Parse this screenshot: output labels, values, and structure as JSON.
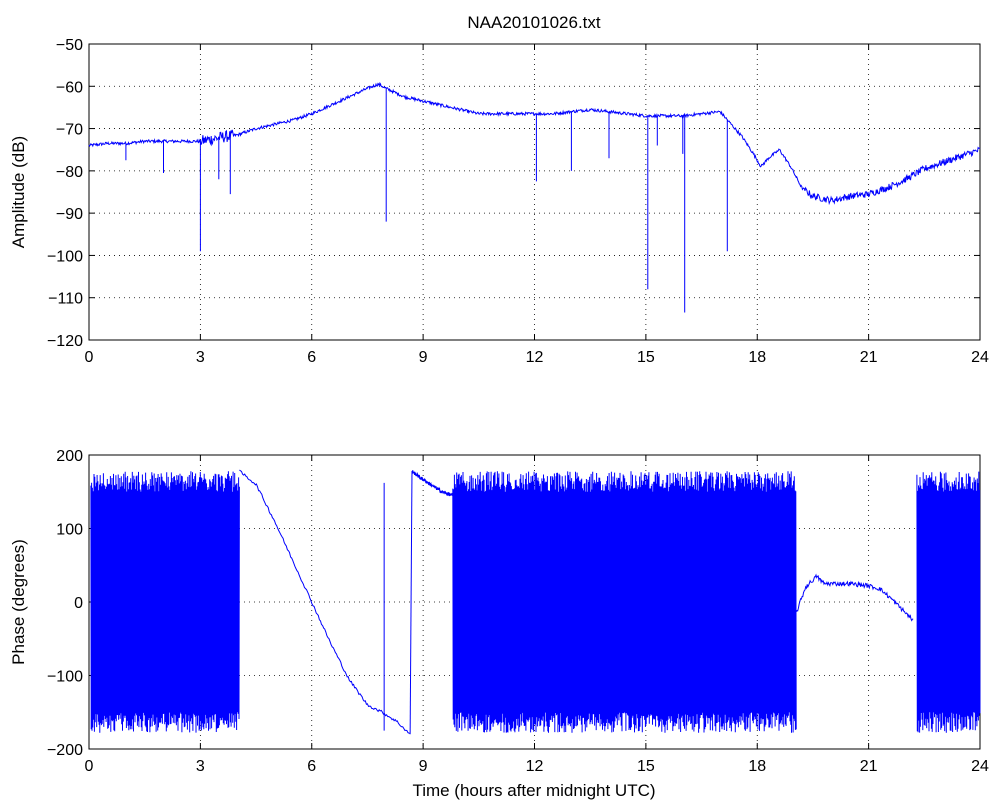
{
  "colors": {
    "series": "#0000ff",
    "axes": "#000000",
    "grid": "#000000",
    "background": "#ffffff"
  },
  "chart_data": [
    {
      "type": "line",
      "title": "NAA20101026.txt",
      "xlabel": "",
      "ylabel": "Amplitude (dB)",
      "xlim": [
        0,
        24
      ],
      "ylim": [
        -120,
        -50
      ],
      "xticks": [
        0,
        3,
        6,
        9,
        12,
        15,
        18,
        21,
        24
      ],
      "yticks": [
        -120,
        -110,
        -100,
        -90,
        -80,
        -70,
        -60,
        -50
      ],
      "grid": true,
      "series": [
        {
          "x": [
            0,
            0.5,
            1.0,
            1.5,
            2.0,
            2.5,
            3.0,
            3.3,
            3.6,
            4.0,
            4.5,
            5.0,
            5.5,
            6.0,
            6.5,
            7.0,
            7.5,
            7.8,
            8.0,
            8.5,
            9.0,
            9.5,
            10.0,
            10.5,
            11.0,
            11.5,
            12.0,
            12.5,
            13.0,
            13.5,
            14.0,
            14.5,
            15.0,
            15.5,
            16.0,
            16.5,
            17.0,
            17.3,
            17.6,
            17.9,
            18.1,
            18.3,
            18.6,
            18.9,
            19.2,
            19.5,
            20.0,
            20.5,
            21.0,
            21.5,
            22.0,
            22.5,
            23.0,
            23.5,
            24.0
          ],
          "y": [
            -74,
            -73.5,
            -73.5,
            -73,
            -73,
            -73,
            -73,
            -72.5,
            -72,
            -71.5,
            -70,
            -69,
            -68,
            -66.5,
            -64.5,
            -62.5,
            -60.5,
            -59.5,
            -60.5,
            -62.5,
            -63.5,
            -64.5,
            -65.5,
            -66.5,
            -66.5,
            -66.5,
            -66.5,
            -66.5,
            -66,
            -65.5,
            -66,
            -66.5,
            -67,
            -67,
            -67,
            -66.5,
            -66,
            -69,
            -72,
            -76,
            -79,
            -77,
            -75,
            -79,
            -84,
            -86,
            -87,
            -86,
            -85.5,
            -84,
            -82,
            -79.5,
            -78,
            -76.5,
            -75
          ]
        },
        {
          "name_hidden": "",
          "spikes": [
            [
              1.0,
              -77.5
            ],
            [
              2.0,
              -80.5
            ],
            [
              3.0,
              -99
            ],
            [
              3.5,
              -82
            ],
            [
              3.8,
              -85.5
            ],
            [
              8.0,
              -92
            ],
            [
              12.05,
              -82.5
            ],
            [
              13.0,
              -80
            ],
            [
              14.0,
              -77
            ],
            [
              15.05,
              -108
            ],
            [
              15.3,
              -74
            ],
            [
              16.0,
              -76
            ],
            [
              16.05,
              -113.5
            ],
            [
              17.2,
              -99
            ]
          ]
        }
      ]
    },
    {
      "type": "line",
      "title": "",
      "xlabel": "Time (hours after midnight UTC)",
      "ylabel": "Phase (degrees)",
      "xlim": [
        0,
        24
      ],
      "ylim": [
        -200,
        200
      ],
      "xticks": [
        0,
        3,
        6,
        9,
        12,
        15,
        18,
        21,
        24
      ],
      "yticks": [
        -200,
        -100,
        0,
        100,
        200
      ],
      "grid": true,
      "series": [
        {
          "noisy_segments": [
            [
              0.05,
              4.05
            ],
            [
              9.8,
              19.05
            ],
            [
              22.3,
              24
            ]
          ],
          "ramp": {
            "x": [
              4.05,
              4.5,
              5.0,
              5.5,
              6.0,
              6.5,
              7.0,
              7.5,
              7.9,
              8.3,
              8.65
            ],
            "y": [
              178,
              160,
              110,
              55,
              0,
              -55,
              -105,
              -140,
              -150,
              -163,
              -180
            ]
          },
          "spike": [
            7.95,
            -175,
            162
          ],
          "plateau1": {
            "x": [
              8.7,
              8.9,
              9.2,
              9.5,
              9.8
            ],
            "y": [
              178,
              170,
              160,
              150,
              145
            ]
          },
          "plateau2": {
            "x": [
              19.05,
              19.3,
              19.6,
              19.8,
              20.0,
              20.5,
              21.0,
              21.3,
              21.6,
              21.9,
              22.2
            ],
            "y": [
              -15,
              20,
              35,
              25,
              25,
              25,
              22,
              18,
              5,
              -10,
              -25
            ]
          }
        }
      ]
    }
  ]
}
